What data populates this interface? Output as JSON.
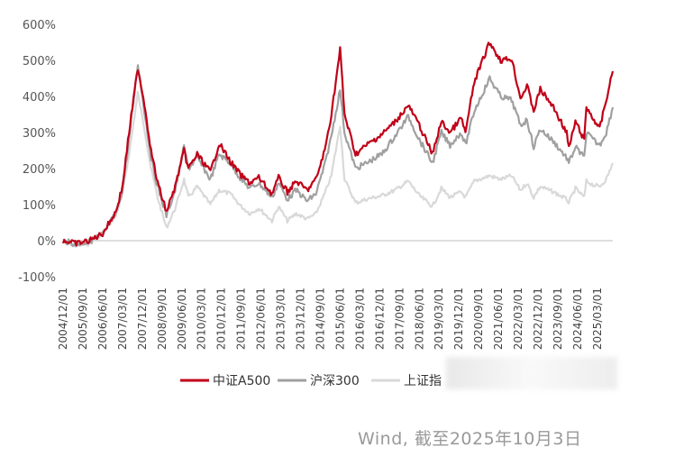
{
  "chart_data": {
    "type": "line",
    "y_ticks": [
      "600%",
      "500%",
      "400%",
      "300%",
      "200%",
      "100%",
      "0%",
      "-100%"
    ],
    "ylim": [
      -100,
      600
    ],
    "x_ticks": [
      "2004/12/01",
      "2005/09/01",
      "2006/06/01",
      "2007/03/01",
      "2007/12/01",
      "2008/09/01",
      "2009/06/01",
      "2010/03/01",
      "2010/12/01",
      "2011/09/01",
      "2012/06/01",
      "2013/03/01",
      "2013/12/01",
      "2014/09/01",
      "2015/06/01",
      "2016/03/01",
      "2016/12/01",
      "2017/09/01",
      "2018/06/01",
      "2019/03/01",
      "2019/12/01",
      "2020/09/01",
      "2021/06/01",
      "2022/03/01",
      "2022/12/01",
      "2023/09/01",
      "2024/06/01",
      "2025/03/01"
    ],
    "x_range": [
      "2004-12",
      "2025-10"
    ],
    "series": [
      {
        "name": "中证A500",
        "color": "#c00018",
        "points": [
          [
            "2004-12",
            0
          ],
          [
            "2005-06",
            -8
          ],
          [
            "2005-12",
            0
          ],
          [
            "2006-06",
            20
          ],
          [
            "2006-12",
            80
          ],
          [
            "2007-03",
            150
          ],
          [
            "2007-06",
            300
          ],
          [
            "2007-10",
            480
          ],
          [
            "2008-01",
            380
          ],
          [
            "2008-04",
            250
          ],
          [
            "2008-07",
            160
          ],
          [
            "2008-11",
            80
          ],
          [
            "2009-03",
            150
          ],
          [
            "2009-07",
            250
          ],
          [
            "2009-09",
            200
          ],
          [
            "2010-01",
            240
          ],
          [
            "2010-07",
            190
          ],
          [
            "2010-11",
            270
          ],
          [
            "2011-04",
            220
          ],
          [
            "2011-09",
            180
          ],
          [
            "2012-01",
            160
          ],
          [
            "2012-05",
            175
          ],
          [
            "2012-11",
            130
          ],
          [
            "2013-02",
            175
          ],
          [
            "2013-06",
            135
          ],
          [
            "2013-10",
            165
          ],
          [
            "2014-03",
            140
          ],
          [
            "2014-07",
            170
          ],
          [
            "2014-11",
            250
          ],
          [
            "2015-02",
            350
          ],
          [
            "2015-06",
            530
          ],
          [
            "2015-08",
            350
          ],
          [
            "2016-01",
            240
          ],
          [
            "2016-06",
            265
          ],
          [
            "2017-01",
            295
          ],
          [
            "2017-07",
            330
          ],
          [
            "2018-01",
            375
          ],
          [
            "2018-06",
            320
          ],
          [
            "2018-12",
            240
          ],
          [
            "2019-04",
            330
          ],
          [
            "2019-08",
            300
          ],
          [
            "2020-01",
            340
          ],
          [
            "2020-03",
            300
          ],
          [
            "2020-07",
            440
          ],
          [
            "2021-02",
            550
          ],
          [
            "2021-07",
            500
          ],
          [
            "2021-12",
            505
          ],
          [
            "2022-04",
            395
          ],
          [
            "2022-07",
            430
          ],
          [
            "2022-10",
            360
          ],
          [
            "2023-01",
            420
          ],
          [
            "2023-07",
            370
          ],
          [
            "2024-01",
            300
          ],
          [
            "2024-02",
            255
          ],
          [
            "2024-05",
            330
          ],
          [
            "2024-09",
            280
          ],
          [
            "2024-10",
            370
          ],
          [
            "2025-01",
            340
          ],
          [
            "2025-04",
            310
          ],
          [
            "2025-07",
            390
          ],
          [
            "2025-10",
            470
          ]
        ]
      },
      {
        "name": "沪深300",
        "color": "#a0a0a0",
        "points": [
          [
            "2004-12",
            0
          ],
          [
            "2005-06",
            -10
          ],
          [
            "2005-12",
            -2
          ],
          [
            "2006-06",
            18
          ],
          [
            "2006-12",
            75
          ],
          [
            "2007-03",
            140
          ],
          [
            "2007-06",
            280
          ],
          [
            "2007-10",
            490
          ],
          [
            "2008-01",
            360
          ],
          [
            "2008-04",
            230
          ],
          [
            "2008-07",
            150
          ],
          [
            "2008-11",
            70
          ],
          [
            "2009-03",
            140
          ],
          [
            "2009-07",
            260
          ],
          [
            "2009-09",
            200
          ],
          [
            "2010-01",
            230
          ],
          [
            "2010-07",
            170
          ],
          [
            "2010-11",
            240
          ],
          [
            "2011-04",
            215
          ],
          [
            "2011-09",
            170
          ],
          [
            "2012-01",
            145
          ],
          [
            "2012-05",
            160
          ],
          [
            "2012-11",
            120
          ],
          [
            "2013-02",
            160
          ],
          [
            "2013-06",
            115
          ],
          [
            "2013-10",
            140
          ],
          [
            "2014-03",
            110
          ],
          [
            "2014-07",
            130
          ],
          [
            "2014-11",
            210
          ],
          [
            "2015-02",
            290
          ],
          [
            "2015-06",
            420
          ],
          [
            "2015-08",
            300
          ],
          [
            "2016-01",
            200
          ],
          [
            "2016-06",
            215
          ],
          [
            "2017-01",
            240
          ],
          [
            "2017-07",
            290
          ],
          [
            "2018-01",
            345
          ],
          [
            "2018-06",
            280
          ],
          [
            "2018-12",
            215
          ],
          [
            "2019-04",
            300
          ],
          [
            "2019-08",
            265
          ],
          [
            "2020-01",
            300
          ],
          [
            "2020-03",
            265
          ],
          [
            "2020-07",
            360
          ],
          [
            "2021-02",
            450
          ],
          [
            "2021-07",
            400
          ],
          [
            "2021-12",
            390
          ],
          [
            "2022-04",
            320
          ],
          [
            "2022-07",
            335
          ],
          [
            "2022-10",
            260
          ],
          [
            "2023-01",
            310
          ],
          [
            "2023-07",
            275
          ],
          [
            "2024-01",
            230
          ],
          [
            "2024-02",
            215
          ],
          [
            "2024-05",
            260
          ],
          [
            "2024-09",
            230
          ],
          [
            "2024-10",
            300
          ],
          [
            "2025-01",
            280
          ],
          [
            "2025-04",
            265
          ],
          [
            "2025-07",
            300
          ],
          [
            "2025-10",
            370
          ]
        ]
      },
      {
        "name": "上证指数",
        "color": "#d9d9d9",
        "points": [
          [
            "2004-12",
            0
          ],
          [
            "2005-06",
            -15
          ],
          [
            "2005-12",
            -8
          ],
          [
            "2006-06",
            20
          ],
          [
            "2006-12",
            70
          ],
          [
            "2007-03",
            130
          ],
          [
            "2007-06",
            240
          ],
          [
            "2007-10",
            410
          ],
          [
            "2008-01",
            310
          ],
          [
            "2008-04",
            200
          ],
          [
            "2008-07",
            120
          ],
          [
            "2008-11",
            35
          ],
          [
            "2009-03",
            90
          ],
          [
            "2009-07",
            170
          ],
          [
            "2009-09",
            120
          ],
          [
            "2010-01",
            150
          ],
          [
            "2010-07",
            100
          ],
          [
            "2010-11",
            140
          ],
          [
            "2011-04",
            130
          ],
          [
            "2011-09",
            95
          ],
          [
            "2012-01",
            75
          ],
          [
            "2012-05",
            90
          ],
          [
            "2012-11",
            55
          ],
          [
            "2013-02",
            95
          ],
          [
            "2013-06",
            55
          ],
          [
            "2013-10",
            75
          ],
          [
            "2014-03",
            60
          ],
          [
            "2014-07",
            75
          ],
          [
            "2014-11",
            130
          ],
          [
            "2015-02",
            180
          ],
          [
            "2015-06",
            320
          ],
          [
            "2015-08",
            170
          ],
          [
            "2016-01",
            105
          ],
          [
            "2016-06",
            115
          ],
          [
            "2017-01",
            125
          ],
          [
            "2017-07",
            140
          ],
          [
            "2018-01",
            165
          ],
          [
            "2018-06",
            125
          ],
          [
            "2018-12",
            95
          ],
          [
            "2019-04",
            145
          ],
          [
            "2019-08",
            120
          ],
          [
            "2020-01",
            135
          ],
          [
            "2020-03",
            120
          ],
          [
            "2020-07",
            165
          ],
          [
            "2021-02",
            180
          ],
          [
            "2021-07",
            170
          ],
          [
            "2021-12",
            180
          ],
          [
            "2022-04",
            140
          ],
          [
            "2022-07",
            160
          ],
          [
            "2022-10",
            120
          ],
          [
            "2023-01",
            150
          ],
          [
            "2023-07",
            135
          ],
          [
            "2024-01",
            115
          ],
          [
            "2024-02",
            105
          ],
          [
            "2024-05",
            145
          ],
          [
            "2024-09",
            120
          ],
          [
            "2024-10",
            165
          ],
          [
            "2025-01",
            155
          ],
          [
            "2025-04",
            150
          ],
          [
            "2025-07",
            170
          ],
          [
            "2025-10",
            215
          ]
        ]
      }
    ],
    "legend": [
      "中证A500",
      "沪深300",
      "上证指"
    ],
    "legend_position": "bottom"
  },
  "source": "Wind, 截至2025年10月3日"
}
